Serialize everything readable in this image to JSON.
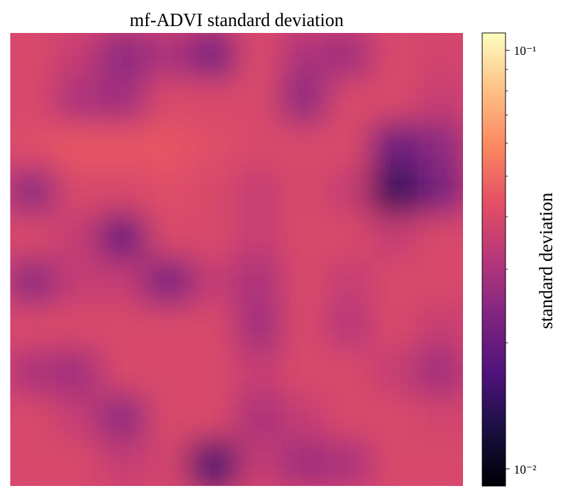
{
  "chart_data": {
    "type": "heatmap",
    "title": "mf-ADVI standard deviation",
    "colorbar_label": "standard deviation",
    "colormap": "magma",
    "log_scale": true,
    "clim": [
      0.0091,
      0.11
    ],
    "cticks": [
      {
        "value": 0.1,
        "label": "10⁻¹"
      },
      {
        "value": 0.01,
        "label": "10⁻²"
      }
    ],
    "minor_cticks": [
      0.02,
      0.03,
      0.04,
      0.05,
      0.06,
      0.07,
      0.08,
      0.09
    ],
    "values": [
      [
        0.04,
        0.035,
        0.025,
        0.03,
        0.022,
        0.04,
        0.03,
        0.028,
        0.04,
        0.038
      ],
      [
        0.04,
        0.03,
        0.028,
        0.04,
        0.04,
        0.04,
        0.025,
        0.04,
        0.04,
        0.035
      ],
      [
        0.042,
        0.045,
        0.045,
        0.045,
        0.042,
        0.04,
        0.04,
        0.04,
        0.02,
        0.025
      ],
      [
        0.025,
        0.04,
        0.04,
        0.042,
        0.04,
        0.035,
        0.04,
        0.035,
        0.014,
        0.022
      ],
      [
        0.04,
        0.035,
        0.02,
        0.04,
        0.04,
        0.035,
        0.04,
        0.04,
        0.035,
        0.04
      ],
      [
        0.025,
        0.035,
        0.035,
        0.022,
        0.035,
        0.03,
        0.04,
        0.035,
        0.04,
        0.04
      ],
      [
        0.04,
        0.04,
        0.04,
        0.04,
        0.04,
        0.028,
        0.04,
        0.032,
        0.04,
        0.035
      ],
      [
        0.03,
        0.028,
        0.04,
        0.04,
        0.04,
        0.035,
        0.04,
        0.04,
        0.035,
        0.028
      ],
      [
        0.04,
        0.035,
        0.025,
        0.04,
        0.04,
        0.03,
        0.035,
        0.04,
        0.04,
        0.038
      ],
      [
        0.04,
        0.04,
        0.035,
        0.038,
        0.016,
        0.035,
        0.028,
        0.03,
        0.04,
        0.04
      ]
    ]
  }
}
